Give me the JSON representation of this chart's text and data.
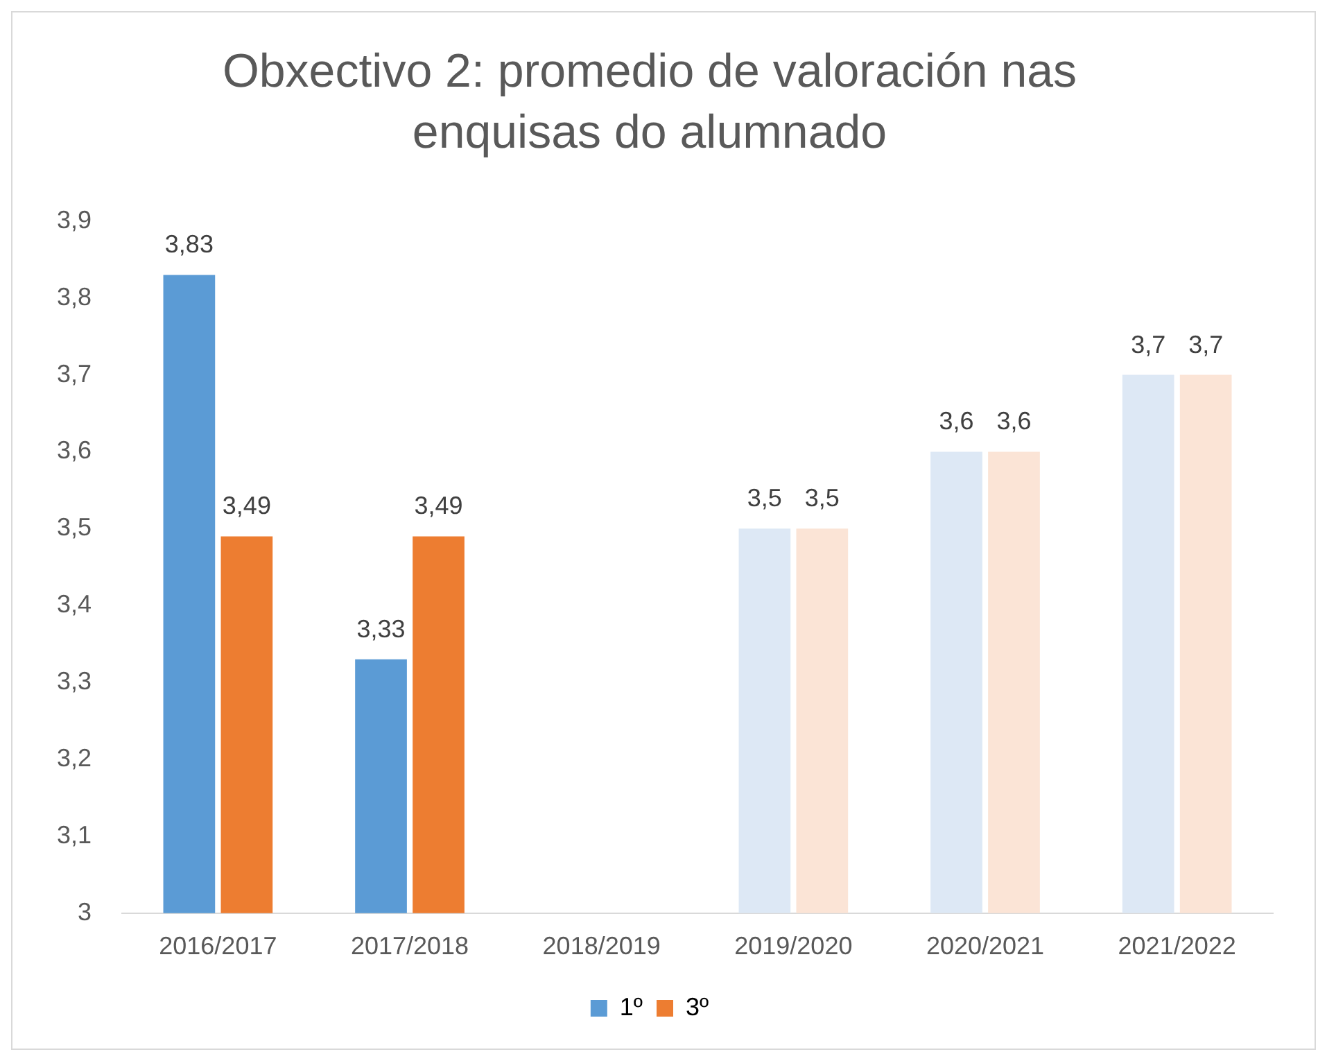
{
  "chart_data": {
    "type": "bar",
    "title": "Obxectivo 2: promedio de valoración nas enquisas do alumnado",
    "categories": [
      "2016/2017",
      "2017/2018",
      "2018/2019",
      "2019/2020",
      "2020/2021",
      "2021/2022"
    ],
    "series": [
      {
        "name": "1º",
        "color": "#5b9bd5",
        "colors": [
          "#5b9bd5",
          "#5b9bd5",
          null,
          "#dde8f5",
          "#dde8f5",
          "#dde8f5"
        ],
        "values": [
          3.83,
          3.33,
          null,
          3.5,
          3.6,
          3.7
        ],
        "value_labels": [
          "3,83",
          "3,33",
          null,
          "3,5",
          "3,6",
          "3,7"
        ]
      },
      {
        "name": "3º",
        "color": "#ed7d31",
        "colors": [
          "#ed7d31",
          "#ed7d31",
          null,
          "#fbe4d6",
          "#fbe4d6",
          "#fbe4d6"
        ],
        "values": [
          3.49,
          3.49,
          null,
          3.5,
          3.6,
          3.7
        ],
        "value_labels": [
          "3,49",
          "3,49",
          null,
          "3,5",
          "3,6",
          "3,7"
        ]
      }
    ],
    "ylim": [
      3,
      3.9
    ],
    "yticks": [
      {
        "value": 3,
        "label": "3"
      },
      {
        "value": 3.1,
        "label": "3,1"
      },
      {
        "value": 3.2,
        "label": "3,2"
      },
      {
        "value": 3.3,
        "label": "3,3"
      },
      {
        "value": 3.4,
        "label": "3,4"
      },
      {
        "value": 3.5,
        "label": "3,5"
      },
      {
        "value": 3.6,
        "label": "3,6"
      },
      {
        "value": 3.7,
        "label": "3,7"
      },
      {
        "value": 3.8,
        "label": "3,8"
      },
      {
        "value": 3.9,
        "label": "3,9"
      }
    ],
    "grid": false,
    "legend": "bottom"
  }
}
